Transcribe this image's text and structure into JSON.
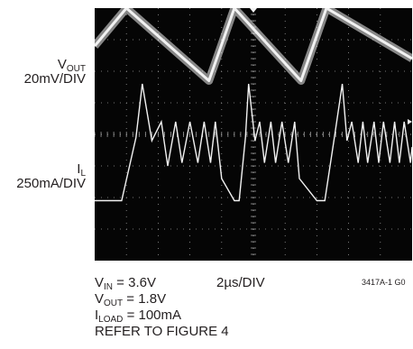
{
  "labels": {
    "vout_main": "V",
    "vout_sub": "OUT",
    "vout_scale": "20mV/DIV",
    "il_main": "I",
    "il_sub": "L",
    "il_scale": "250mA/DIV",
    "vin_main": "V",
    "vin_sub": "IN",
    "vin_val": " = 3.6V",
    "time_div": "2µs/DIV",
    "vout2_main": "V",
    "vout2_sub": "OUT",
    "vout2_val": " = 1.8V",
    "iload_main": "I",
    "iload_sub": "LOAD",
    "iload_val": " = 100mA",
    "refer": "REFER TO FIGURE 4",
    "figure_id": "3417A-1 G0"
  },
  "colors": {
    "screen": "#050505",
    "grid": "#9a9a9a",
    "trace": "#f2f2f2"
  },
  "chart_data": {
    "type": "line",
    "x_divisions": 10,
    "y_divisions": 8,
    "time_per_div_us": 2,
    "series": [
      {
        "name": "V_OUT",
        "scale": "20mV/DIV",
        "x_div": [
          0,
          1.0,
          3.6,
          4.4,
          6.5,
          7.3,
          10
        ],
        "y_div": [
          1.6,
          2.8,
          0.5,
          2.8,
          0.5,
          2.8,
          1.2
        ]
      },
      {
        "name": "I_L",
        "scale": "250mA/DIV",
        "x_div": [
          0,
          0.85,
          1.3,
          1.5,
          1.8,
          2.1,
          2.3,
          2.55,
          2.75,
          3.0,
          3.25,
          3.45,
          3.65,
          3.8,
          4.0,
          4.4,
          4.55,
          4.75,
          4.85,
          5.05,
          5.2,
          5.35,
          5.55,
          5.7,
          5.9,
          6.1,
          6.3,
          6.45,
          7.0,
          7.25,
          7.55,
          7.8,
          7.95,
          8.1,
          8.3,
          8.45,
          8.6,
          8.8,
          8.95,
          9.1,
          9.3,
          9.45,
          9.6,
          9.75,
          9.95,
          10
        ],
        "y_div": [
          -1.3,
          -1.3,
          0.7,
          2.4,
          0.6,
          1.2,
          -0.2,
          1.2,
          -0.1,
          1.2,
          -0.1,
          1.2,
          -0.1,
          1.2,
          -0.6,
          -1.3,
          -1.3,
          0.7,
          2.4,
          0.6,
          1.2,
          -0.1,
          1.2,
          -0.1,
          1.2,
          -0.1,
          1.2,
          -0.6,
          -1.3,
          -1.3,
          0.7,
          2.4,
          0.6,
          1.2,
          -0.1,
          1.2,
          -0.1,
          1.2,
          -0.1,
          1.2,
          -0.1,
          1.2,
          -0.1,
          1.2,
          -0.1,
          0.4
        ]
      }
    ]
  }
}
